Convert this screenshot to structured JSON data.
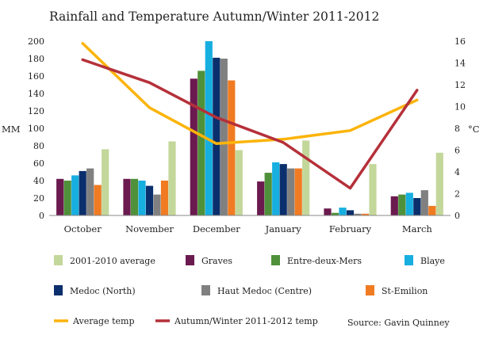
{
  "chart_data": {
    "type": "bar",
    "title": "Rainfall and Temperature Autumn/Winter 2011-2012",
    "ylabel": "MM",
    "y2label": "°C",
    "ylim": [
      0,
      200
    ],
    "y2lim": [
      0,
      16
    ],
    "yticks": [
      "0",
      "20",
      "40",
      "60",
      "80",
      "100",
      "120",
      "140",
      "160",
      "180",
      "200"
    ],
    "y2ticks": [
      "0",
      "2",
      "4",
      "6",
      "8",
      "10",
      "12",
      "14",
      "16"
    ],
    "categories": [
      "October",
      "November",
      "December",
      "January",
      "February",
      "March"
    ],
    "series": [
      {
        "name": "2001-2010 average",
        "color": "#c4d79b",
        "values": [
          76,
          85,
          75,
          86,
          59,
          72
        ]
      },
      {
        "name": "Graves",
        "color": "#6b1a4f",
        "values": [
          42,
          42,
          157,
          39,
          8,
          22
        ]
      },
      {
        "name": "Entre-deux-Mers",
        "color": "#4f913a",
        "values": [
          40,
          42,
          166,
          49,
          3,
          24
        ]
      },
      {
        "name": "Blaye",
        "color": "#17aee0",
        "values": [
          46,
          40,
          200,
          61,
          9,
          26
        ]
      },
      {
        "name": "Medoc (North)",
        "color": "#0b2f6c",
        "values": [
          51,
          34,
          181,
          59,
          6,
          20
        ]
      },
      {
        "name": "Haut Medoc (Centre)",
        "color": "#808080",
        "values": [
          54,
          24,
          180,
          54,
          2,
          29
        ]
      },
      {
        "name": "St-Emilion",
        "color": "#f07b22",
        "values": [
          35,
          40,
          155,
          54,
          2,
          11
        ]
      }
    ],
    "line_series": [
      {
        "name": "Average temp",
        "color": "#fbb40b",
        "axis": "right",
        "values": [
          15.8,
          9.9,
          6.6,
          7.0,
          7.8,
          10.6
        ]
      },
      {
        "name": "Autumn/Winter 2011-2012 temp",
        "color": "#b5303a",
        "axis": "right",
        "values": [
          14.3,
          12.2,
          9.0,
          6.7,
          2.5,
          11.5
        ]
      }
    ],
    "bar_order": [
      "Graves",
      "Entre-deux-Mers",
      "Blaye",
      "Medoc (North)",
      "Haut Medoc (Centre)",
      "St-Emilion",
      "2001-2010 average"
    ],
    "legend_position": "bottom",
    "grid": false
  },
  "source": "Source: Gavin Quinney"
}
